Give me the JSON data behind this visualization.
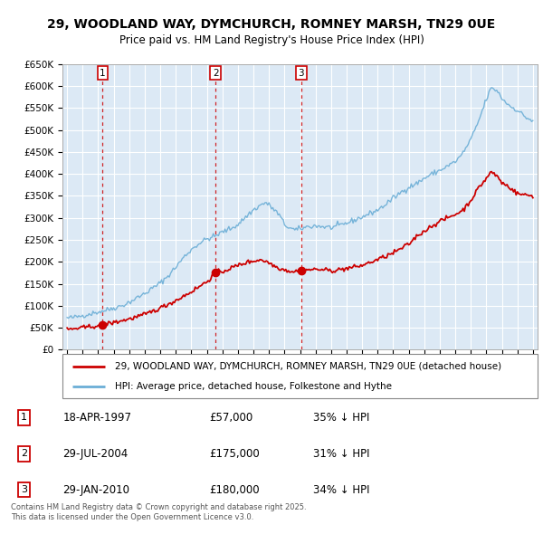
{
  "title": "29, WOODLAND WAY, DYMCHURCH, ROMNEY MARSH, TN29 0UE",
  "subtitle": "Price paid vs. HM Land Registry's House Price Index (HPI)",
  "bg_color": "#dce9f5",
  "grid_color": "#ffffff",
  "red_line_color": "#cc0000",
  "blue_line_color": "#6baed6",
  "ylim": [
    0,
    650000
  ],
  "yticks": [
    0,
    50000,
    100000,
    150000,
    200000,
    250000,
    300000,
    350000,
    400000,
    450000,
    500000,
    550000,
    600000,
    650000
  ],
  "ytick_labels": [
    "£0",
    "£50K",
    "£100K",
    "£150K",
    "£200K",
    "£250K",
    "£300K",
    "£350K",
    "£400K",
    "£450K",
    "£500K",
    "£550K",
    "£600K",
    "£650K"
  ],
  "xlim_start": 1994.7,
  "xlim_end": 2025.3,
  "sales": [
    {
      "num": 1,
      "date": "18-APR-1997",
      "year": 1997.29,
      "price": 57000,
      "pct": "35%",
      "dir": "↓"
    },
    {
      "num": 2,
      "date": "29-JUL-2004",
      "year": 2004.57,
      "price": 175000,
      "pct": "31%",
      "dir": "↓"
    },
    {
      "num": 3,
      "date": "29-JAN-2010",
      "year": 2010.08,
      "price": 180000,
      "pct": "34%",
      "dir": "↓"
    }
  ],
  "legend_red": "29, WOODLAND WAY, DYMCHURCH, ROMNEY MARSH, TN29 0UE (detached house)",
  "legend_blue": "HPI: Average price, detached house, Folkestone and Hythe",
  "footer": "Contains HM Land Registry data © Crown copyright and database right 2025.\nThis data is licensed under the Open Government Licence v3.0.",
  "hpi_years": [
    1995.0,
    1995.5,
    1996.0,
    1996.5,
    1997.0,
    1997.5,
    1998.0,
    1998.5,
    1999.0,
    1999.5,
    2000.0,
    2000.5,
    2001.0,
    2001.5,
    2002.0,
    2002.5,
    2003.0,
    2003.5,
    2004.0,
    2004.5,
    2005.0,
    2005.5,
    2006.0,
    2006.5,
    2007.0,
    2007.5,
    2007.8,
    2008.3,
    2008.7,
    2009.0,
    2009.3,
    2009.7,
    2010.0,
    2010.5,
    2011.0,
    2011.5,
    2012.0,
    2012.5,
    2013.0,
    2013.5,
    2014.0,
    2014.5,
    2015.0,
    2015.5,
    2016.0,
    2016.5,
    2017.0,
    2017.5,
    2018.0,
    2018.5,
    2019.0,
    2019.5,
    2020.0,
    2020.2,
    2020.5,
    2021.0,
    2021.5,
    2022.0,
    2022.3,
    2022.7,
    2023.0,
    2023.5,
    2024.0,
    2024.5,
    2025.0
  ],
  "hpi_prices": [
    72000,
    74000,
    78000,
    82000,
    86000,
    90000,
    95000,
    100000,
    108000,
    118000,
    128000,
    140000,
    152000,
    168000,
    188000,
    210000,
    228000,
    242000,
    252000,
    258000,
    268000,
    275000,
    285000,
    302000,
    318000,
    330000,
    335000,
    320000,
    305000,
    285000,
    278000,
    272000,
    275000,
    280000,
    282000,
    280000,
    278000,
    282000,
    288000,
    295000,
    302000,
    310000,
    318000,
    330000,
    345000,
    358000,
    370000,
    378000,
    390000,
    400000,
    408000,
    418000,
    428000,
    435000,
    448000,
    478000,
    520000,
    570000,
    595000,
    590000,
    572000,
    555000,
    545000,
    530000,
    520000
  ],
  "red_years": [
    1995.0,
    1996.0,
    1997.0,
    1997.29,
    1998.0,
    1999.0,
    2000.0,
    2001.0,
    2002.0,
    2003.0,
    2004.0,
    2004.57,
    2005.0,
    2005.5,
    2006.0,
    2006.5,
    2007.0,
    2007.5,
    2008.0,
    2008.5,
    2009.0,
    2009.5,
    2010.0,
    2010.08,
    2010.5,
    2011.0,
    2011.5,
    2012.0,
    2012.5,
    2013.0,
    2013.5,
    2014.0,
    2015.0,
    2016.0,
    2017.0,
    2017.5,
    2018.0,
    2018.5,
    2019.0,
    2019.5,
    2020.0,
    2020.5,
    2021.0,
    2021.5,
    2022.0,
    2022.3,
    2022.7,
    2023.0,
    2023.5,
    2024.0,
    2025.0
  ],
  "red_prices": [
    46000,
    50000,
    55000,
    57000,
    62000,
    70000,
    80000,
    95000,
    112000,
    132000,
    155000,
    175000,
    178000,
    185000,
    192000,
    198000,
    202000,
    205000,
    198000,
    188000,
    182000,
    178000,
    180000,
    180000,
    182000,
    183000,
    182000,
    180000,
    182000,
    185000,
    188000,
    192000,
    205000,
    220000,
    240000,
    258000,
    270000,
    282000,
    292000,
    300000,
    308000,
    318000,
    340000,
    368000,
    390000,
    405000,
    395000,
    380000,
    370000,
    355000,
    350000
  ]
}
